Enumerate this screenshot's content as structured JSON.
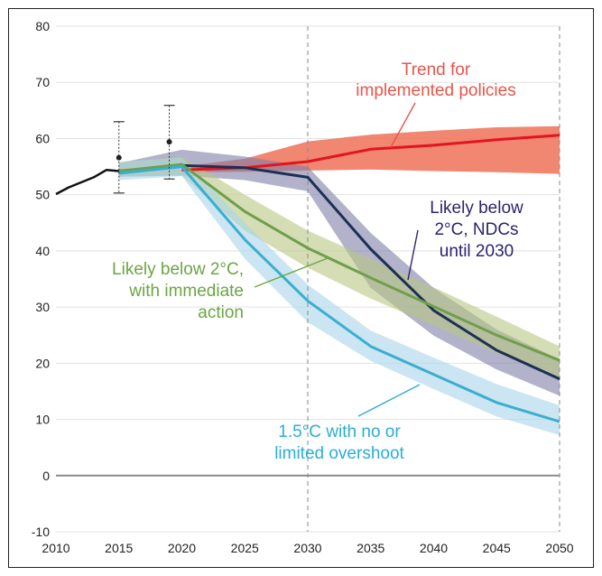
{
  "chart_data": {
    "type": "line",
    "xlim": [
      2010,
      2050
    ],
    "ylim": [
      -10,
      80
    ],
    "x_ticks": [
      2010,
      2015,
      2020,
      2025,
      2030,
      2035,
      2040,
      2045,
      2050
    ],
    "y_ticks": [
      -10,
      0,
      10,
      20,
      30,
      40,
      50,
      60,
      70,
      80
    ],
    "grid": "horizontal",
    "reference_lines_x": [
      2030,
      2050
    ],
    "historical": {
      "x": [
        2010,
        2011,
        2012,
        2013,
        2014,
        2015
      ],
      "y": [
        50.1,
        51.3,
        52.2,
        53.1,
        54.4,
        54.2
      ]
    },
    "datapoints_with_error_bars": [
      {
        "x": 2015,
        "y": 56.6,
        "low": 50.3,
        "high": 63.0
      },
      {
        "x": 2019,
        "y": 59.4,
        "low": 52.8,
        "high": 65.9
      }
    ],
    "series": [
      {
        "name": "Trend for implemented policies",
        "color": "#e3141d",
        "band_color": "#ef7158",
        "x": [
          2020,
          2025,
          2030,
          2035,
          2040,
          2045,
          2050
        ],
        "y": [
          54.4,
          54.8,
          55.9,
          58.1,
          58.8,
          59.8,
          60.6
        ],
        "low": [
          54.0,
          54.1,
          54.3,
          54.5,
          54.2,
          54.0,
          53.7
        ],
        "high": [
          55.0,
          56.4,
          59.5,
          60.7,
          61.4,
          62.0,
          62.2
        ],
        "label": [
          "Trend for",
          "implemented policies"
        ],
        "label_color": "#e9544b"
      },
      {
        "name": "Likely below 2°C, NDCs until 2030",
        "color": "#1c3054",
        "band_color": "#7e7ea8",
        "x": [
          2015,
          2020,
          2025,
          2030,
          2035,
          2040,
          2045,
          2050
        ],
        "y": [
          54.2,
          55.2,
          54.8,
          53.1,
          40.3,
          29.4,
          22.3,
          17.2
        ],
        "low": [
          53.2,
          53.4,
          52.6,
          50.6,
          33.4,
          24.9,
          18.9,
          14.2
        ],
        "high": [
          55.6,
          58.0,
          56.8,
          55.0,
          43.2,
          33.4,
          26.0,
          20.7
        ],
        "label": [
          "Likely below",
          "2°C, NDCs",
          "until 2030"
        ],
        "label_color": "#2d256d"
      },
      {
        "name": "Likely below 2°C, with immediate action",
        "color": "#6f9e4c",
        "band_color": "#b9c784",
        "x": [
          2015,
          2020,
          2025,
          2030,
          2035,
          2040,
          2045,
          2050
        ],
        "y": [
          54.2,
          55.4,
          47.0,
          40.5,
          35.2,
          30.1,
          25.0,
          20.5
        ],
        "low": [
          53.2,
          53.4,
          43.6,
          37.0,
          31.5,
          26.7,
          21.8,
          17.2
        ],
        "high": [
          55.6,
          56.8,
          50.0,
          43.6,
          38.6,
          33.5,
          28.3,
          23.0
        ],
        "label": [
          "Likely below 2°C,",
          "with immediate",
          "action"
        ],
        "label_color": "#6aa643"
      },
      {
        "name": "1.5°C with no or limited overshoot",
        "color": "#3aaed0",
        "band_color": "#a9d5ea",
        "x": [
          2015,
          2020,
          2025,
          2030,
          2035,
          2040,
          2045,
          2050
        ],
        "y": [
          53.8,
          55.0,
          42.0,
          31.1,
          23.0,
          18.0,
          13.0,
          9.6
        ],
        "low": [
          52.6,
          53.3,
          38.6,
          27.3,
          20.4,
          15.4,
          10.5,
          7.2
        ],
        "high": [
          55.9,
          56.6,
          45.0,
          34.0,
          25.8,
          21.0,
          16.3,
          12.5
        ],
        "label": [
          "1.5°C with no or",
          "limited overshoot"
        ],
        "label_color": "#2aaed7"
      }
    ]
  }
}
